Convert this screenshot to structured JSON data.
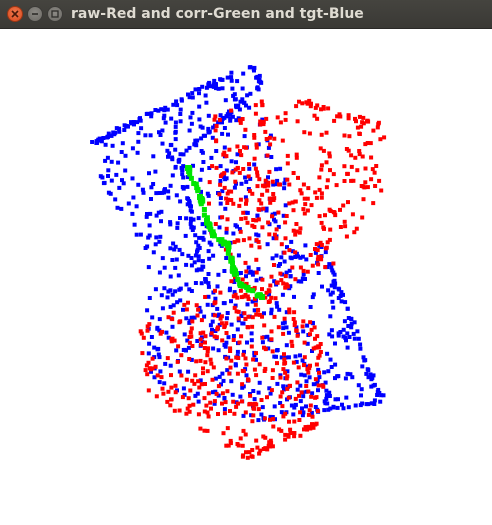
{
  "window": {
    "title": "raw-Red and corr-Green and tgt-Blue"
  },
  "icons": {
    "close": "close-icon",
    "minimize": "minimize-icon",
    "maximize": "maximize-icon"
  },
  "point_clouds": [
    {
      "name": "raw",
      "color": "#ff0000"
    },
    {
      "name": "corr",
      "color": "#00e600"
    },
    {
      "name": "tgt",
      "color": "#0000ff"
    }
  ]
}
